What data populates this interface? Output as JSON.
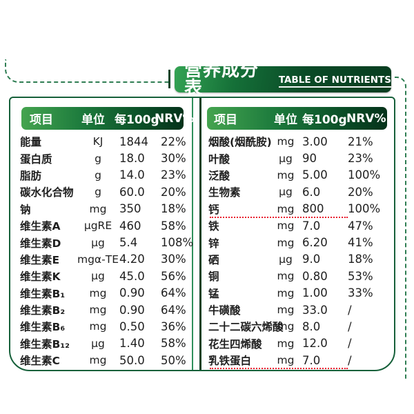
{
  "banner": {
    "title": "营养成分表",
    "subtitle": "TABLE OF NUTRIENTS"
  },
  "colors": {
    "banner_green_light": "#33a353",
    "banner_green_dark": "#083d20",
    "header_bar_light": "#45a44f",
    "header_bar_dark": "#05321a",
    "outer_border_green": "#16603a",
    "divider_green": "#0c4126",
    "dash_green": "#2e7d52",
    "red_dotted_line": "#e8192c",
    "text": "#1f1f1f"
  },
  "left_table": {
    "header": {
      "item": "项目",
      "unit": "单位",
      "per100g": "每100g",
      "nrv": "NRV%"
    },
    "rows": [
      {
        "label": "能量",
        "unit": "KJ",
        "value": "1844",
        "nrv": "22%"
      },
      {
        "label": "蛋白质",
        "unit": "g",
        "value": "18.0",
        "nrv": "30%"
      },
      {
        "label": "脂肪",
        "unit": "g",
        "value": "14.0",
        "nrv": "23%"
      },
      {
        "label": "碳水化合物",
        "unit": "g",
        "value": "60.0",
        "nrv": "20%"
      },
      {
        "label": "钠",
        "unit": "mg",
        "value": "350",
        "nrv": "18%"
      },
      {
        "label": "维生素A",
        "unit": "μgRE",
        "value": "460",
        "nrv": "58%"
      },
      {
        "label": "维生素D",
        "unit": "μg",
        "value": "5.4",
        "nrv": "108%"
      },
      {
        "label": "维生素E",
        "unit": "mgα-TE",
        "value": "4.20",
        "nrv": "30%"
      },
      {
        "label": "维生素K",
        "unit": "μg",
        "value": "45.0",
        "nrv": "56%"
      },
      {
        "label": "维生素B₁",
        "unit": "mg",
        "value": "0.90",
        "nrv": "64%"
      },
      {
        "label": "维生素B₂",
        "unit": "mg",
        "value": "0.90",
        "nrv": "64%"
      },
      {
        "label": "维生素B₆",
        "unit": "mg",
        "value": "0.50",
        "nrv": "36%"
      },
      {
        "label": "维生素B₁₂",
        "unit": "μg",
        "value": "1.40",
        "nrv": "58%"
      },
      {
        "label": "维生素C",
        "unit": "mg",
        "value": "50.0",
        "nrv": "50%"
      }
    ]
  },
  "right_table": {
    "header": {
      "item": "项目",
      "unit": "单位",
      "per100g": "每100g",
      "nrv": "NRV%"
    },
    "rows": [
      {
        "label": "烟酸(烟酰胺)",
        "unit": "mg",
        "value": "3.00",
        "nrv": "21%"
      },
      {
        "label": "叶酸",
        "unit": "μg",
        "value": "90",
        "nrv": "23%"
      },
      {
        "label": "泛酸",
        "unit": "mg",
        "value": "5.00",
        "nrv": "100%"
      },
      {
        "label": "生物素",
        "unit": "μg",
        "value": "6.0",
        "nrv": "20%"
      },
      {
        "label": "钙",
        "unit": "mg",
        "value": "800",
        "nrv": "100%",
        "red_underline": true
      },
      {
        "label": "铁",
        "unit": "mg",
        "value": "7.0",
        "nrv": "47%"
      },
      {
        "label": "锌",
        "unit": "mg",
        "value": "6.20",
        "nrv": "41%"
      },
      {
        "label": "硒",
        "unit": "μg",
        "value": "9.0",
        "nrv": "18%"
      },
      {
        "label": "铜",
        "unit": "mg",
        "value": "0.80",
        "nrv": "53%"
      },
      {
        "label": "锰",
        "unit": "mg",
        "value": "1.00",
        "nrv": "33%"
      },
      {
        "label": "牛磺酸",
        "unit": "mg",
        "value": "33.0",
        "nrv": "/"
      },
      {
        "label": "二十二碳六烯酸",
        "unit": "mg",
        "value": "8.0",
        "nrv": "/"
      },
      {
        "label": "花生四烯酸",
        "unit": "mg",
        "value": "12.0",
        "nrv": "/"
      },
      {
        "label": "乳铁蛋白",
        "unit": "mg",
        "value": "7.0",
        "nrv": "/",
        "red_underline": true
      }
    ]
  }
}
